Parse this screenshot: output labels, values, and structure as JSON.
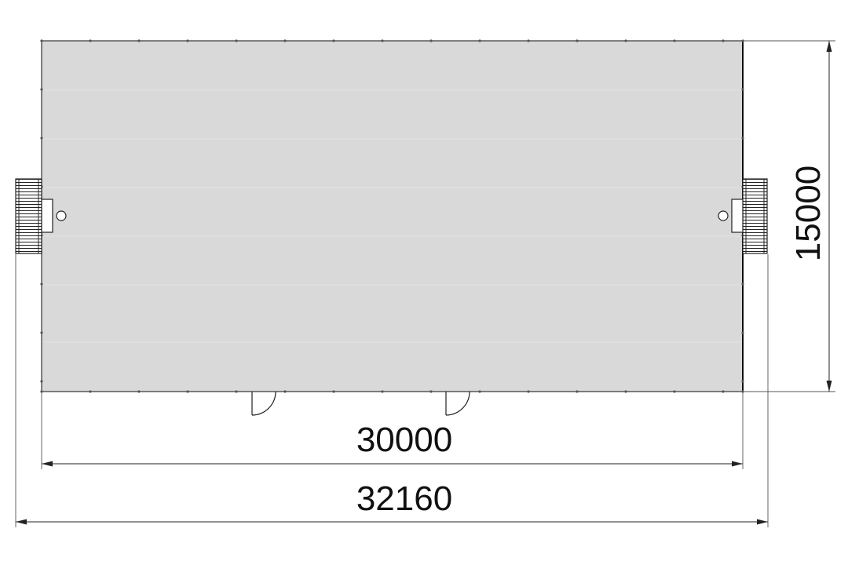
{
  "dimensions": {
    "width_inner": "30000",
    "width_outer": "32160",
    "depth": "15000"
  },
  "colors": {
    "floor_fill": "#d9d9d9",
    "line": "#222222",
    "background": "#ffffff"
  }
}
